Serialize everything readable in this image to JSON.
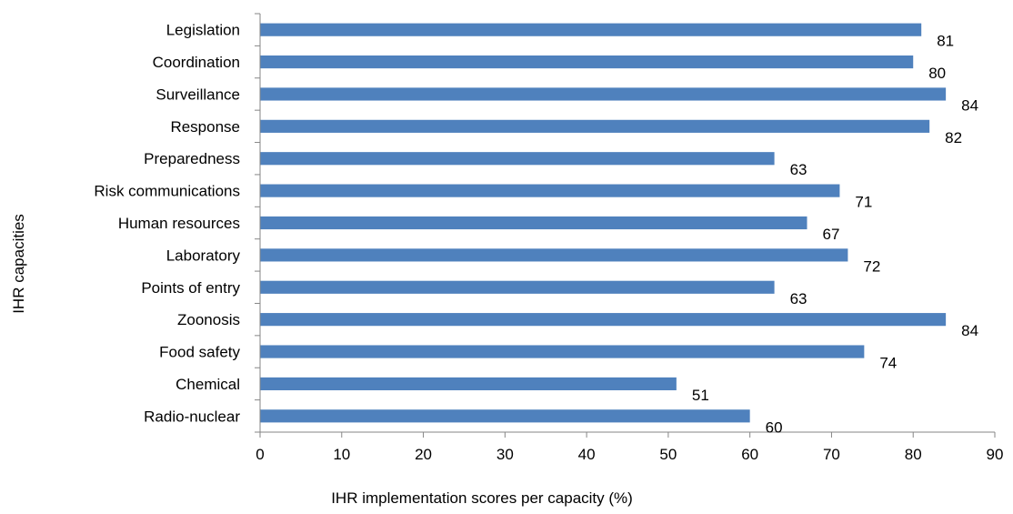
{
  "chart_data": {
    "type": "bar",
    "orientation": "horizontal",
    "title": "",
    "xlabel": "IHR implementation scores per capacity (%)",
    "ylabel": "IHR capacities",
    "categories": [
      "Legislation",
      "Coordination",
      "Surveillance",
      "Response",
      "Preparedness",
      "Risk communications",
      "Human resources",
      "Laboratory",
      "Points of entry",
      "Zoonosis",
      "Food safety",
      "Chemical",
      "Radio-nuclear"
    ],
    "values": [
      81,
      80,
      84,
      82,
      63,
      71,
      67,
      72,
      63,
      84,
      74,
      51,
      60
    ],
    "xlim": [
      0,
      90
    ],
    "xticks": [
      0,
      10,
      20,
      30,
      40,
      50,
      60,
      70,
      80,
      90
    ],
    "grid": false,
    "legend": "none",
    "bar_color": "#4f81bd",
    "axis_color": "#868686"
  }
}
